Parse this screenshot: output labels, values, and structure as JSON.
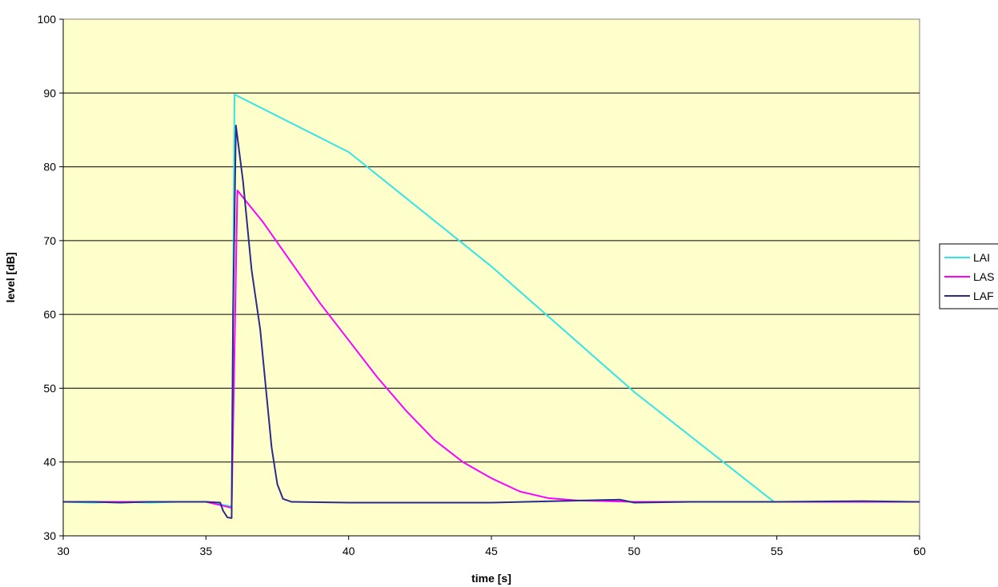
{
  "chart_data": {
    "type": "line",
    "title": "",
    "xlabel": "time [s]",
    "ylabel": "level [dB]",
    "xlim": [
      30,
      60
    ],
    "ylim": [
      30,
      100
    ],
    "x_ticks": [
      30,
      35,
      40,
      45,
      50,
      55,
      60
    ],
    "y_ticks": [
      30,
      40,
      50,
      60,
      70,
      80,
      90,
      100
    ],
    "grid": "horizontal major gridlines",
    "plot_background": "#FFFFCC",
    "legend_position": "right",
    "series": [
      {
        "name": "LAI",
        "color": "#33E6E6",
        "points": [
          [
            30,
            34.6
          ],
          [
            31,
            34.5
          ],
          [
            32,
            34.6
          ],
          [
            33,
            34.5
          ],
          [
            34,
            34.6
          ],
          [
            35,
            34.6
          ],
          [
            35.9,
            34.0
          ],
          [
            36.0,
            89.8
          ],
          [
            40,
            82.0
          ],
          [
            45,
            66.5
          ],
          [
            50,
            49.5
          ],
          [
            54.9,
            34.6
          ],
          [
            56,
            34.6
          ],
          [
            58,
            34.6
          ],
          [
            60,
            34.6
          ]
        ]
      },
      {
        "name": "LAS",
        "color": "#FF00FF",
        "points": [
          [
            30,
            34.6
          ],
          [
            32,
            34.6
          ],
          [
            34,
            34.6
          ],
          [
            35,
            34.6
          ],
          [
            35.9,
            33.8
          ],
          [
            36.0,
            55.0
          ],
          [
            36.1,
            76.8
          ],
          [
            37,
            72.5
          ],
          [
            38,
            67.0
          ],
          [
            39,
            61.5
          ],
          [
            40,
            56.5
          ],
          [
            41,
            51.5
          ],
          [
            42,
            47.0
          ],
          [
            43,
            43.0
          ],
          [
            44,
            40.0
          ],
          [
            45,
            37.8
          ],
          [
            46,
            36.0
          ],
          [
            47,
            35.1
          ],
          [
            48,
            34.8
          ],
          [
            50,
            34.6
          ],
          [
            55,
            34.6
          ],
          [
            60,
            34.6
          ]
        ]
      },
      {
        "name": "LAF",
        "color": "#2B2B8C",
        "points": [
          [
            30,
            34.6
          ],
          [
            31,
            34.6
          ],
          [
            32,
            34.5
          ],
          [
            33,
            34.6
          ],
          [
            34,
            34.6
          ],
          [
            35,
            34.6
          ],
          [
            35.5,
            34.5
          ],
          [
            35.6,
            33.4
          ],
          [
            35.75,
            32.5
          ],
          [
            35.9,
            32.4
          ],
          [
            35.95,
            60.0
          ],
          [
            36.05,
            85.6
          ],
          [
            36.3,
            78.0
          ],
          [
            36.6,
            66.0
          ],
          [
            36.9,
            58.0
          ],
          [
            37.1,
            50.0
          ],
          [
            37.3,
            42.0
          ],
          [
            37.5,
            37.0
          ],
          [
            37.7,
            35.0
          ],
          [
            38,
            34.6
          ],
          [
            40,
            34.5
          ],
          [
            45,
            34.5
          ],
          [
            49.5,
            34.9
          ],
          [
            50,
            34.5
          ],
          [
            52,
            34.6
          ],
          [
            55,
            34.6
          ],
          [
            58,
            34.7
          ],
          [
            60,
            34.6
          ]
        ]
      }
    ]
  }
}
